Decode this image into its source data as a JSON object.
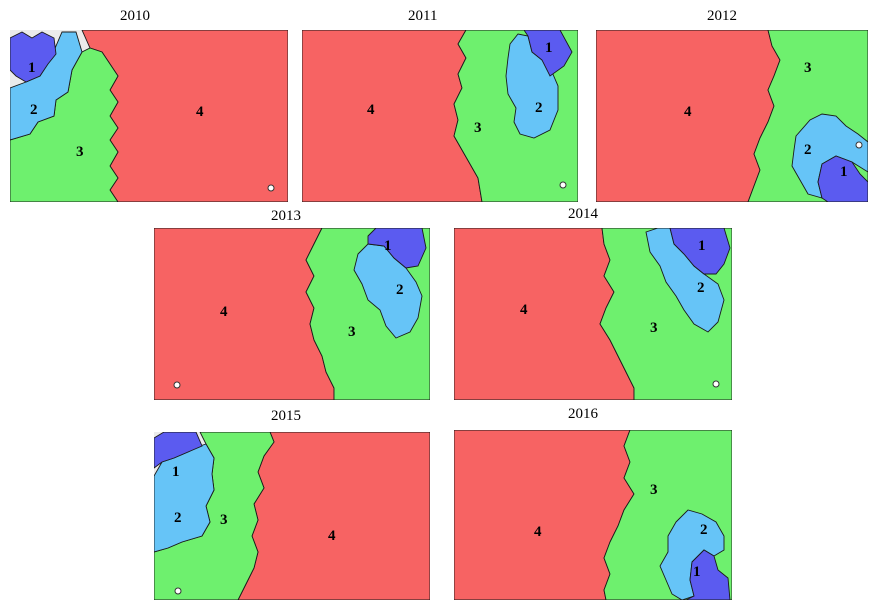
{
  "colors": {
    "cluster_1": "#5b5bf0",
    "cluster_2": "#66c4f7",
    "cluster_3": "#6ef06e",
    "cluster_4": "#f76363",
    "background": "#ebebeb"
  },
  "panels": [
    {
      "key": "y2010",
      "year": "2010",
      "labels": {
        "c1": "1",
        "c2": "2",
        "c3": "3",
        "c4": "4"
      }
    },
    {
      "key": "y2011",
      "year": "2011",
      "labels": {
        "c1": "1",
        "c2": "2",
        "c3": "3",
        "c4": "4"
      }
    },
    {
      "key": "y2012",
      "year": "2012",
      "labels": {
        "c1": "1",
        "c2": "2",
        "c3": "3",
        "c4": "4"
      }
    },
    {
      "key": "y2013",
      "year": "2013",
      "labels": {
        "c1": "1",
        "c2": "2",
        "c3": "3",
        "c4": "4"
      }
    },
    {
      "key": "y2014",
      "year": "2014",
      "labels": {
        "c1": "1",
        "c2": "2",
        "c3": "3",
        "c4": "4"
      }
    },
    {
      "key": "y2015",
      "year": "2015",
      "labels": {
        "c1": "1",
        "c2": "2",
        "c3": "3",
        "c4": "4"
      }
    },
    {
      "key": "y2016",
      "year": "2016",
      "labels": {
        "c1": "1",
        "c2": "2",
        "c3": "3",
        "c4": "4"
      }
    }
  ]
}
